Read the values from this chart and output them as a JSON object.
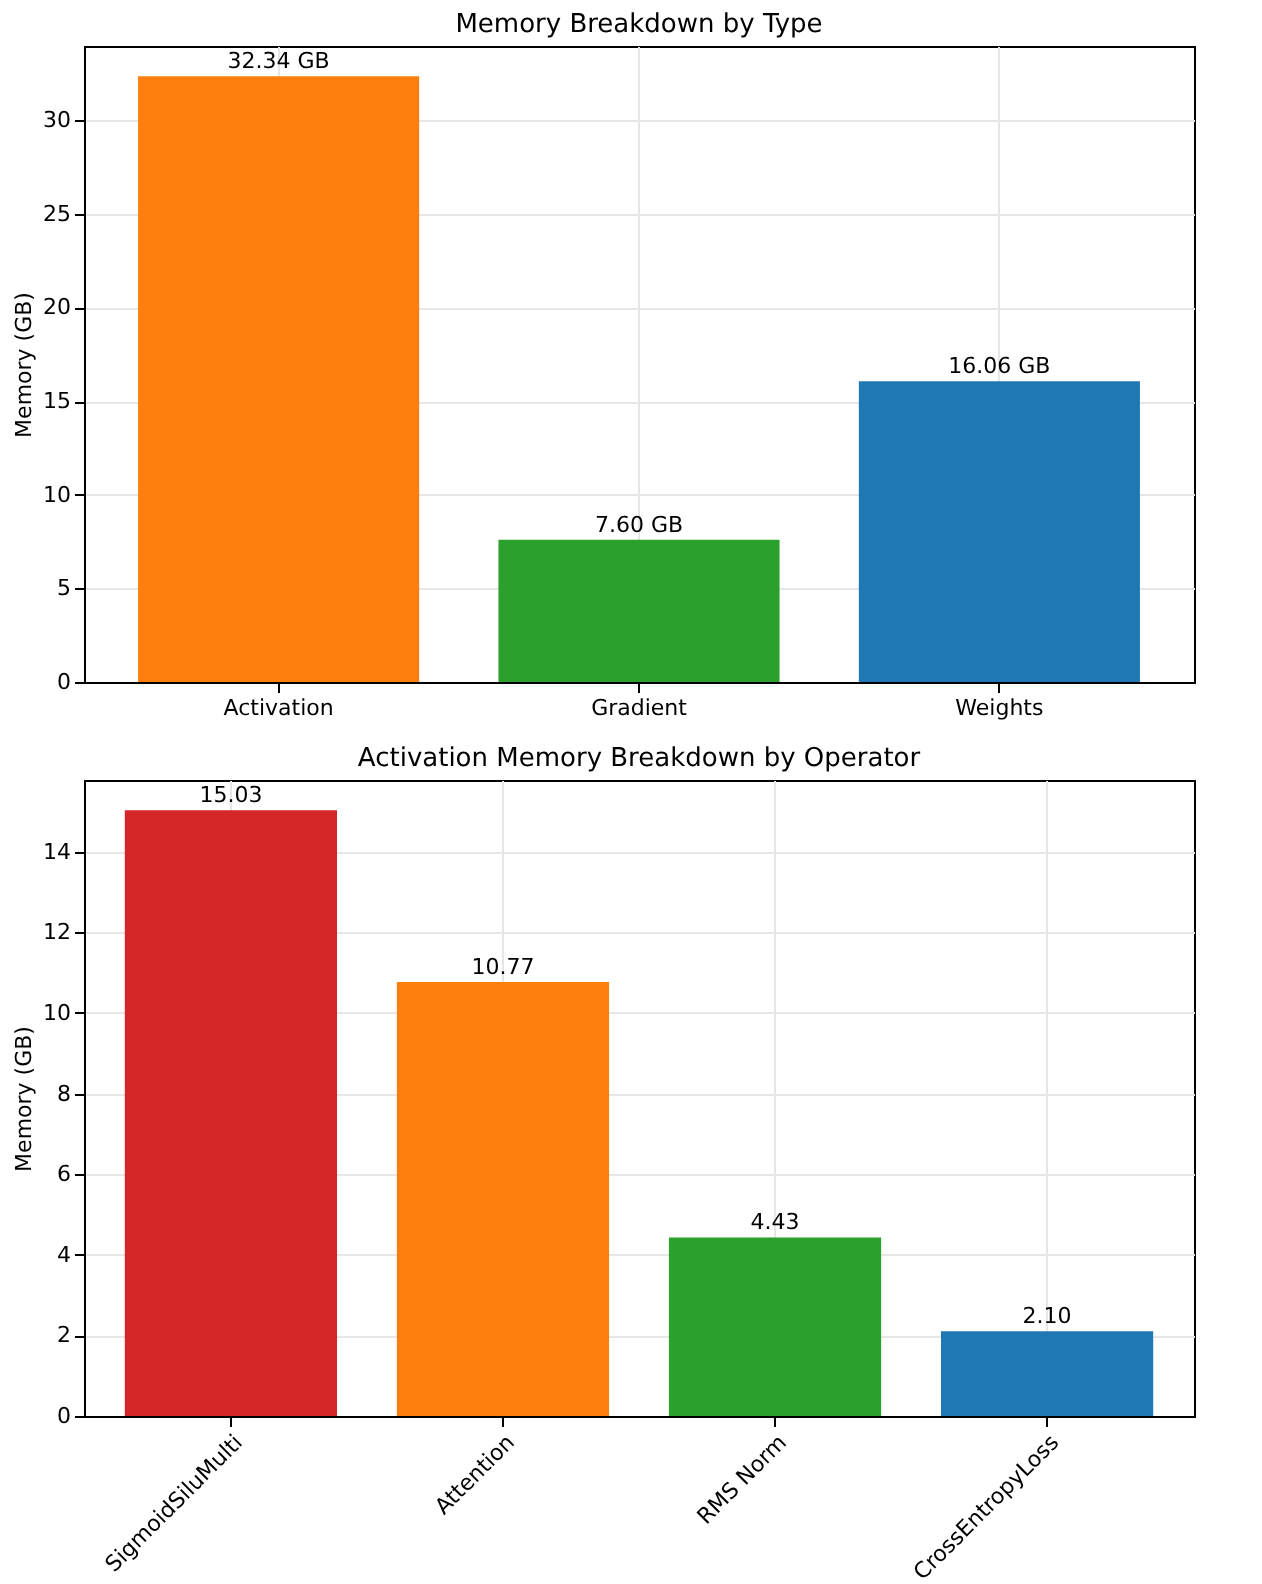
{
  "chart_data": [
    {
      "type": "bar",
      "title": "Memory Breakdown by Type",
      "ylabel": "Memory (GB)",
      "categories": [
        "Activation",
        "Gradient",
        "Weights"
      ],
      "values": [
        32.34,
        7.6,
        16.06
      ],
      "colors": [
        "#ff7f0e",
        "#2ca02c",
        "#1f77b4"
      ],
      "value_labels": [
        "32.34 GB",
        "7.60 GB",
        "16.06 GB"
      ],
      "ylim": [
        0,
        33.96
      ],
      "yticks": [
        0,
        5,
        10,
        15,
        20,
        25,
        30
      ],
      "grid": true
    },
    {
      "type": "bar",
      "title": "Activation Memory Breakdown by Operator",
      "ylabel": "Memory (GB)",
      "categories": [
        "SigmoidSiluMulti",
        "Attention",
        "RMS Norm",
        "CrossEntropyLoss"
      ],
      "values": [
        15.03,
        10.77,
        4.43,
        2.1
      ],
      "colors": [
        "#d62728",
        "#ff7f0e",
        "#2ca02c",
        "#1f77b4"
      ],
      "value_labels": [
        "15.03",
        "10.77",
        "4.43",
        "2.10"
      ],
      "ylim": [
        0,
        15.78
      ],
      "yticks": [
        0,
        2,
        4,
        6,
        8,
        10,
        12,
        14
      ],
      "grid": true
    }
  ]
}
